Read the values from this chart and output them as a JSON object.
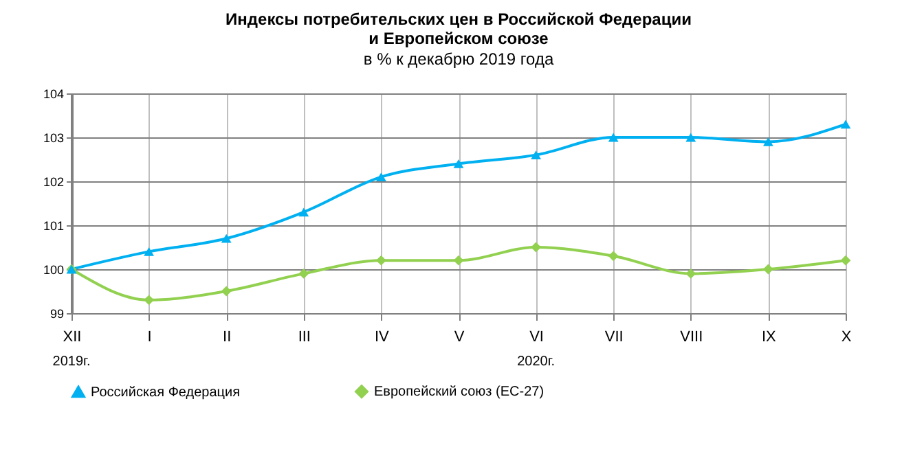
{
  "chart_data": {
    "type": "line",
    "title": [
      "Индексы потребительских цен в Российской Федерации",
      "и Европейском союзе"
    ],
    "subtitle": "в % к декабрю 2019 года",
    "categories": [
      "XII",
      "I",
      "II",
      "III",
      "IV",
      "V",
      "VI",
      "VII",
      "VIII",
      "IX",
      "X"
    ],
    "series": [
      {
        "name": "Российская Федерация",
        "color": "#00b0f0",
        "marker": "triangle",
        "values": [
          100,
          100.4,
          100.7,
          101.3,
          102.1,
          102.4,
          102.6,
          103.0,
          103.0,
          102.9,
          103.3
        ]
      },
      {
        "name": "Европейский союз (ЕС-27)",
        "color": "#92d050",
        "marker": "diamond",
        "values": [
          100,
          99.3,
          99.5,
          99.9,
          100.2,
          100.2,
          100.5,
          100.3,
          99.9,
          100.0,
          100.2
        ]
      }
    ],
    "ylim": [
      99,
      104
    ],
    "yticks": [
      99,
      100,
      101,
      102,
      103,
      104
    ],
    "grid": true,
    "legend": "bottom",
    "line_style": "solid",
    "annotations": [
      "2019г.",
      "2020г."
    ]
  }
}
